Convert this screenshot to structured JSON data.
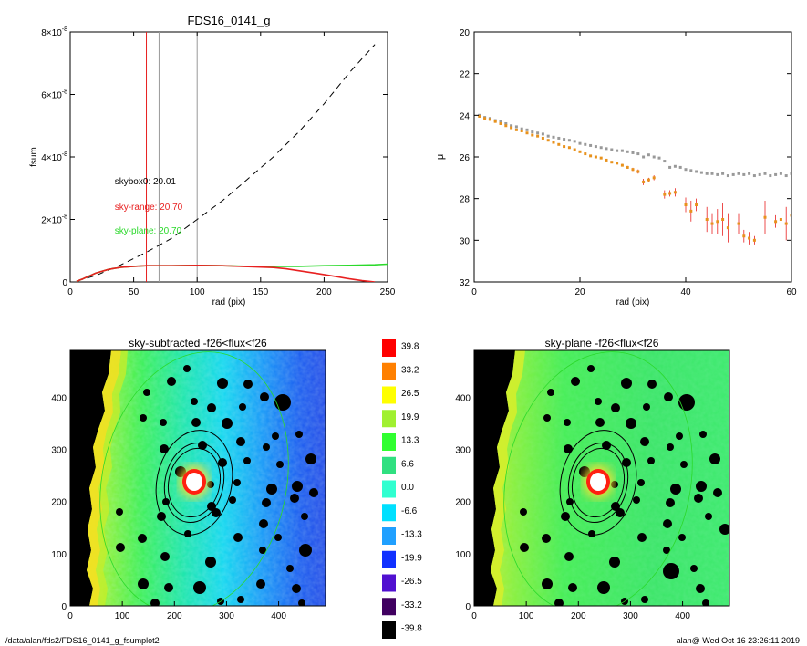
{
  "chart_data": [
    {
      "type": "line",
      "title": "FDS16_0141_g",
      "xlabel": "rad (pix)",
      "ylabel": "fsum",
      "xlim": [
        0,
        250
      ],
      "ylim": [
        0,
        8e-08
      ],
      "xticks": [
        "0",
        "50",
        "100",
        "150",
        "200",
        "250"
      ],
      "yticks": [
        {
          "value": 0,
          "label": "0"
        },
        {
          "value": 2e-08,
          "label": "2×10",
          "exp": "-8"
        },
        {
          "value": 4e-08,
          "label": "4×10",
          "exp": "-8"
        },
        {
          "value": 6e-08,
          "label": "6×10",
          "exp": "-8"
        },
        {
          "value": 8e-08,
          "label": "8×10",
          "exp": "-8"
        }
      ],
      "vlines": [
        {
          "x": 60,
          "color": "#e82020"
        },
        {
          "x": 70,
          "color": "#999999"
        },
        {
          "x": 100,
          "color": "#999999"
        }
      ],
      "annotations": [
        {
          "text": "skybox0: 20.01",
          "x": 35,
          "y": 3.13e-08,
          "color": "#000000"
        },
        {
          "text": "sky-range: 20.70",
          "x": 35,
          "y": 2.3e-08,
          "color": "#e82020"
        },
        {
          "text": "sky-plane: 20.70",
          "x": 35,
          "y": 1.55e-08,
          "color": "#2bd92b"
        }
      ],
      "series": [
        {
          "style": "dashed",
          "color": "#000000",
          "x": [
            5,
            20,
            40,
            60,
            80,
            100,
            120,
            140,
            160,
            180,
            200,
            220,
            240
          ],
          "y": [
            3e-10,
            2e-09,
            5.5e-09,
            9.5e-09,
            1.4e-08,
            2e-08,
            2.6e-08,
            3.3e-08,
            4e-08,
            4.8e-08,
            5.7e-08,
            6.7e-08,
            7.6e-08
          ]
        },
        {
          "style": "solid",
          "color": "#2bd92b",
          "x": [
            5,
            10,
            20,
            30,
            40,
            50,
            60,
            80,
            100,
            120,
            140,
            160,
            180,
            200,
            220,
            240,
            250
          ],
          "y": [
            2e-10,
            1e-09,
            2.8e-09,
            4e-09,
            4.7e-09,
            5e-09,
            5.2e-09,
            5.2e-09,
            5.3e-09,
            5.2e-09,
            5e-09,
            5e-09,
            5e-09,
            5.2e-09,
            5.3e-09,
            5.5e-09,
            5.7e-09
          ]
        },
        {
          "style": "solid",
          "color": "#e82020",
          "x": [
            5,
            10,
            20,
            30,
            40,
            50,
            60,
            80,
            100,
            120,
            140,
            160,
            170,
            180,
            195,
            210,
            220,
            230,
            240
          ],
          "y": [
            2e-10,
            1e-09,
            2.8e-09,
            4e-09,
            4.7e-09,
            5e-09,
            5.2e-09,
            5.2e-09,
            5.3e-09,
            5.2e-09,
            4.9e-09,
            4.6e-09,
            4.2e-09,
            3.6e-09,
            2.7e-09,
            1.7e-09,
            1e-09,
            4e-10,
            0.0
          ]
        }
      ]
    },
    {
      "type": "scatter",
      "xlabel": "rad (pix)",
      "ylabel": "μ",
      "xlim": [
        0,
        60
      ],
      "ylim": [
        32,
        20
      ],
      "xticks": [
        "0",
        "20",
        "40",
        "60"
      ],
      "yticks": [
        "20",
        "22",
        "24",
        "26",
        "28",
        "30",
        "32"
      ],
      "series": [
        {
          "color": "#999999",
          "x": [
            1,
            2,
            3,
            4,
            5,
            6,
            7,
            8,
            9,
            10,
            11,
            12,
            13,
            14,
            15,
            16,
            17,
            18,
            19,
            20,
            21,
            22,
            23,
            24,
            25,
            26,
            27,
            28,
            29,
            30,
            31,
            32,
            33,
            34,
            35,
            36,
            37,
            38,
            39,
            40,
            41,
            42,
            43,
            44,
            45,
            46,
            47,
            48,
            49,
            50,
            51,
            52,
            53,
            54,
            55,
            56,
            57,
            58,
            59,
            60
          ],
          "y": [
            24.0,
            24.1,
            24.15,
            24.25,
            24.3,
            24.4,
            24.5,
            24.55,
            24.65,
            24.7,
            24.8,
            24.85,
            24.9,
            25.0,
            25.05,
            25.1,
            25.15,
            25.2,
            25.25,
            25.35,
            25.4,
            25.45,
            25.5,
            25.55,
            25.6,
            25.65,
            25.7,
            25.7,
            25.75,
            25.8,
            25.85,
            26.0,
            25.9,
            26.0,
            26.05,
            26.2,
            26.5,
            26.45,
            26.5,
            26.6,
            26.65,
            26.7,
            26.75,
            26.8,
            26.8,
            26.85,
            26.8,
            26.9,
            26.85,
            26.8,
            26.85,
            26.8,
            26.9,
            26.85,
            26.8,
            26.9,
            26.85,
            26.8,
            26.9,
            26.8
          ]
        },
        {
          "color": "#e8921c",
          "x": [
            1,
            2,
            3,
            4,
            5,
            6,
            7,
            8,
            9,
            10,
            11,
            12,
            13,
            14,
            15,
            16,
            17,
            18,
            19,
            20,
            21,
            22,
            23,
            24,
            25,
            26,
            27,
            28,
            29,
            30,
            31,
            32,
            33,
            34,
            36,
            37,
            38,
            40,
            41,
            42,
            44,
            45,
            46,
            47,
            48,
            50,
            51,
            52,
            53,
            55,
            57,
            58,
            59,
            60
          ],
          "y": [
            24.05,
            24.15,
            24.2,
            24.3,
            24.4,
            24.5,
            24.6,
            24.7,
            24.75,
            24.85,
            24.95,
            25.0,
            25.1,
            25.2,
            25.3,
            25.4,
            25.5,
            25.55,
            25.65,
            25.75,
            25.85,
            25.95,
            26.0,
            26.05,
            26.15,
            26.25,
            26.3,
            26.4,
            26.5,
            26.6,
            26.7,
            27.2,
            27.1,
            27.0,
            27.8,
            27.75,
            27.7,
            28.3,
            28.6,
            28.3,
            29.0,
            29.2,
            29.1,
            29.0,
            29.4,
            29.2,
            29.8,
            29.9,
            30.0,
            28.9,
            29.1,
            29.0,
            29.2,
            28.8
          ],
          "err": [
            0.02,
            0.02,
            0.02,
            0.02,
            0.02,
            0.02,
            0.02,
            0.02,
            0.02,
            0.02,
            0.02,
            0.02,
            0.02,
            0.02,
            0.02,
            0.02,
            0.02,
            0.03,
            0.03,
            0.03,
            0.03,
            0.03,
            0.03,
            0.04,
            0.04,
            0.05,
            0.05,
            0.06,
            0.07,
            0.08,
            0.1,
            0.15,
            0.1,
            0.12,
            0.2,
            0.15,
            0.2,
            0.35,
            0.5,
            0.3,
            0.6,
            0.5,
            0.6,
            0.8,
            0.7,
            0.5,
            0.3,
            0.3,
            0.2,
            0.8,
            0.3,
            0.6,
            0.8,
            0.7
          ]
        }
      ]
    },
    {
      "type": "heatmap",
      "title": "sky-subtracted -f26<flux<f26",
      "xlim": [
        0,
        490
      ],
      "ylim": [
        0,
        490
      ],
      "xticks": [
        "0",
        "100",
        "200",
        "300",
        "400"
      ],
      "yticks": [
        "0",
        "100",
        "200",
        "300",
        "400"
      ]
    },
    {
      "type": "heatmap",
      "title": "sky-plane -f26<flux<f26",
      "xlim": [
        0,
        490
      ],
      "ylim": [
        0,
        490
      ],
      "xticks": [
        "0",
        "100",
        "200",
        "300",
        "400"
      ],
      "yticks": [
        "0",
        "100",
        "200",
        "300",
        "400"
      ]
    }
  ],
  "colorbar": {
    "labels": [
      "39.8",
      "33.2",
      "26.5",
      "19.9",
      "13.3",
      "6.6",
      "0.0",
      "-6.6",
      "-13.3",
      "-19.9",
      "-26.5",
      "-33.2",
      "-39.8"
    ],
    "colors": [
      "#ff0000",
      "#ff8000",
      "#ffff00",
      "#a0f030",
      "#30ff30",
      "#30e080",
      "#30ffd0",
      "#00e0ff",
      "#20a0ff",
      "#1030ff",
      "#5010d0",
      "#400060",
      "#000000"
    ]
  },
  "footer": {
    "left": "/data/alan/fds2/FDS16_0141_g_fsumplot2",
    "right": "alan@  Wed Oct 16 23:26:11 2019"
  }
}
